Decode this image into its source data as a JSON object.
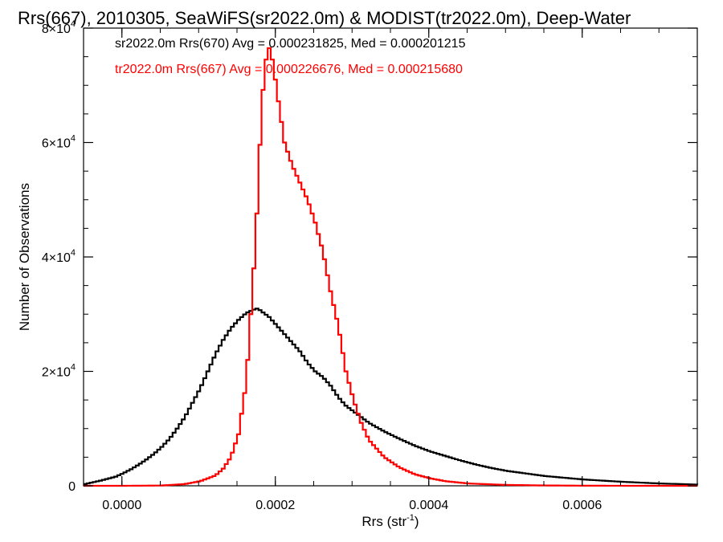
{
  "chart_data": {
    "type": "line",
    "title": "Rrs(667), 2010305, SeaWiFS(sr2022.0m) & MODIST(tr2022.0m), Deep-Water",
    "xlabel": "Rrs (str",
    "xlabel_sup": "-1",
    "xlabel_end": ")",
    "ylabel": "Number of Observations",
    "xlim": [
      -5e-05,
      0.00075
    ],
    "ylim": [
      0,
      80000
    ],
    "x_ticks": [
      {
        "value": 0.0,
        "label": "0.0000"
      },
      {
        "value": 0.0002,
        "label": "0.0002"
      },
      {
        "value": 0.0004,
        "label": "0.0004"
      },
      {
        "value": 0.0006,
        "label": "0.0006"
      }
    ],
    "y_ticks": [
      {
        "value": 0,
        "label": "0",
        "exp": ""
      },
      {
        "value": 20000,
        "label": "2×10",
        "exp": "4"
      },
      {
        "value": 40000,
        "label": "4×10",
        "exp": "4"
      },
      {
        "value": 60000,
        "label": "6×10",
        "exp": "4"
      },
      {
        "value": 80000,
        "label": "8×10",
        "exp": "4"
      }
    ],
    "x_minor_step": 5e-05,
    "y_minor_step": 5000,
    "legend_placement": "top-left",
    "series": [
      {
        "name": "sr2022.0m Rrs(670) Avg = 0.000231825, Med = 0.000201215",
        "color": "#000000",
        "x": [
          -5e-05,
          -3e-05,
          -1e-05,
          0.0,
          1e-05,
          2e-05,
          3e-05,
          4e-05,
          5e-05,
          6e-05,
          7e-05,
          8e-05,
          9e-05,
          0.0001,
          0.00011,
          0.00012,
          0.00013,
          0.00014,
          0.00015,
          0.00016,
          0.00017,
          0.000175,
          0.00018,
          0.00019,
          0.0002,
          0.00021,
          0.00022,
          0.00023,
          0.00024,
          0.00025,
          0.00026,
          0.00027,
          0.00028,
          0.00029,
          0.0003,
          0.00031,
          0.00032,
          0.00034,
          0.00036,
          0.00038,
          0.0004,
          0.00042,
          0.00044,
          0.00046,
          0.00048,
          0.0005,
          0.00055,
          0.0006,
          0.00065,
          0.0007,
          0.00075
        ],
        "y": [
          300,
          900,
          1600,
          2200,
          2900,
          3700,
          4600,
          5600,
          6800,
          8200,
          10000,
          12000,
          14500,
          17000,
          20000,
          23000,
          25500,
          27500,
          29000,
          30200,
          30800,
          31000,
          30500,
          29500,
          28000,
          26500,
          25000,
          23500,
          21500,
          20000,
          19000,
          17500,
          15500,
          14000,
          13000,
          12000,
          11000,
          9500,
          8200,
          7000,
          6000,
          5200,
          4400,
          3700,
          3100,
          2600,
          1700,
          1100,
          700,
          400,
          200
        ]
      },
      {
        "name": "tr2022.0m Rrs(667) Avg = 0.000226676, Med = 0.000215680",
        "color": "#ff0000",
        "x": [
          -5e-05,
          0.0,
          5e-05,
          8e-05,
          0.0001,
          0.00012,
          0.00013,
          0.00014,
          0.00015,
          0.00016,
          0.00017,
          0.000175,
          0.00018,
          0.000185,
          0.00019,
          0.000195,
          0.0002,
          0.00021,
          0.00022,
          0.00023,
          0.00024,
          0.00025,
          0.00026,
          0.00027,
          0.00028,
          0.00029,
          0.0003,
          0.00031,
          0.00032,
          0.00034,
          0.00036,
          0.00038,
          0.0004,
          0.00042,
          0.00045,
          0.0005,
          0.00055,
          0.0006,
          0.00065,
          0.00075
        ],
        "y": [
          0,
          0,
          50,
          300,
          800,
          1800,
          3000,
          5000,
          9000,
          18000,
          38000,
          50000,
          66000,
          74000,
          76500,
          74000,
          69000,
          60000,
          56000,
          53000,
          50000,
          46000,
          41000,
          34000,
          28000,
          20000,
          15000,
          11000,
          8000,
          5000,
          3200,
          2000,
          1300,
          800,
          400,
          150,
          60,
          20,
          5,
          0
        ]
      }
    ]
  }
}
